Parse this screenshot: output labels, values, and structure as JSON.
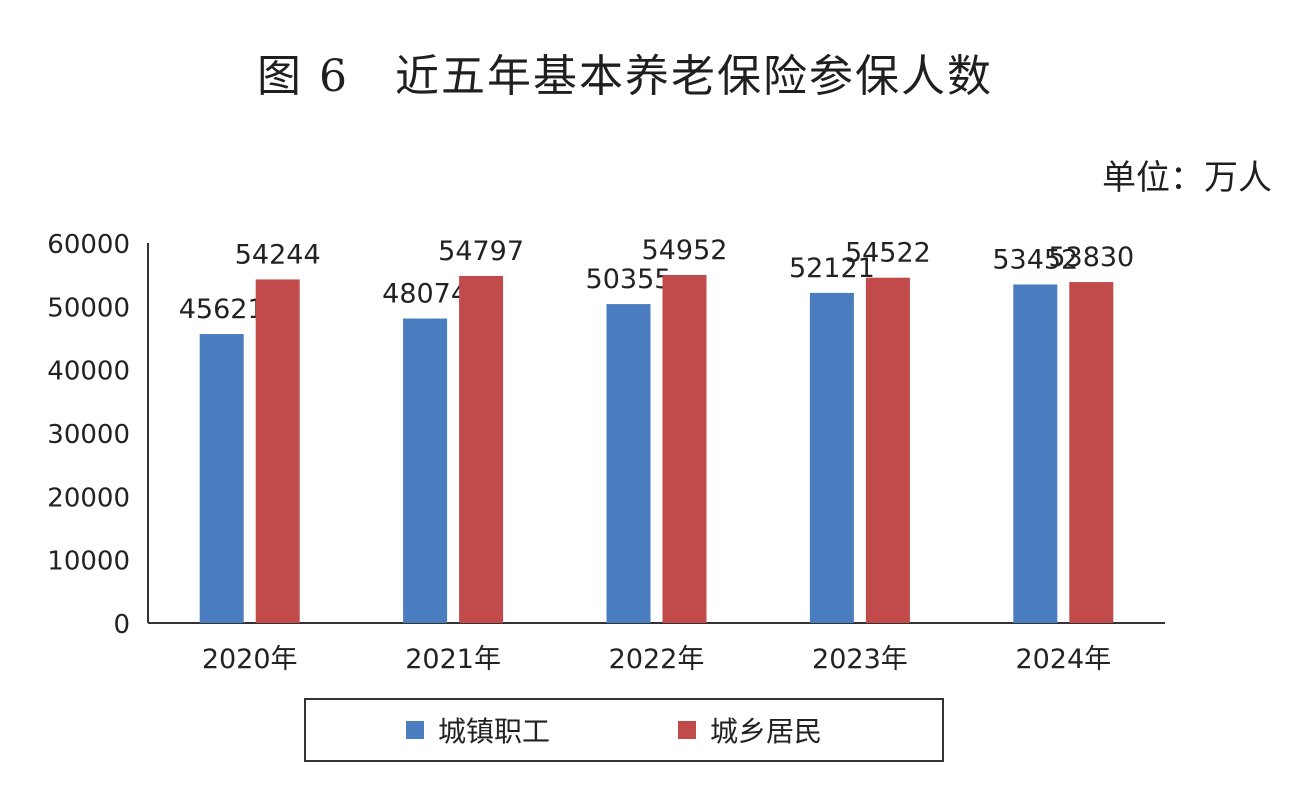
{
  "header": {
    "title": "图 6　近五年基本养老保险参保人数",
    "unit": "单位：万人"
  },
  "colors": {
    "series_1": "#4a7cc0",
    "series_2": "#c14a4a",
    "axis": "#333333"
  },
  "chart_data": {
    "type": "bar",
    "categories": [
      "2020年",
      "2021年",
      "2022年",
      "2023年",
      "2024年"
    ],
    "series": [
      {
        "name": "城镇职工",
        "values": [
          45621,
          48074,
          50355,
          52121,
          53452
        ]
      },
      {
        "name": "城乡居民",
        "values": [
          54244,
          54797,
          54952,
          54522,
          53830
        ]
      }
    ],
    "ylim": [
      0,
      60000
    ],
    "yticks": [
      "0",
      "10000",
      "20000",
      "30000",
      "40000",
      "50000",
      "60000"
    ],
    "grid": false,
    "legend_position": "bottom",
    "data_labels": true
  }
}
